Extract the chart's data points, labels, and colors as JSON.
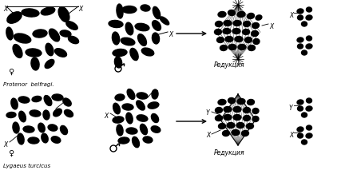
{
  "bg_color": "#ffffff",
  "female_symbol": "♀",
  "male_symbol": "♂",
  "label_top": "Protenor  belfragi.",
  "label_bottom": "Lygaeus turcicus",
  "redukciya": "Редукция",
  "female_top_chroms": [
    [
      18,
      22,
      20,
      12,
      30
    ],
    [
      38,
      16,
      22,
      10,
      -5
    ],
    [
      60,
      14,
      18,
      9,
      15
    ],
    [
      80,
      18,
      12,
      20,
      25
    ],
    [
      90,
      32,
      8,
      16,
      60
    ],
    [
      12,
      42,
      8,
      16,
      10
    ],
    [
      28,
      48,
      22,
      11,
      -15
    ],
    [
      50,
      42,
      18,
      10,
      5
    ],
    [
      68,
      44,
      10,
      18,
      35
    ],
    [
      82,
      42,
      14,
      8,
      -10
    ],
    [
      92,
      50,
      8,
      14,
      65
    ],
    [
      22,
      64,
      10,
      18,
      25
    ],
    [
      42,
      66,
      20,
      10,
      -5
    ],
    [
      62,
      62,
      9,
      16,
      18
    ],
    [
      76,
      66,
      16,
      9,
      -25
    ],
    [
      44,
      80,
      10,
      16,
      8
    ],
    [
      62,
      80,
      14,
      8,
      42
    ]
  ],
  "male_top_chroms": [
    [
      150,
      14,
      8,
      18,
      5
    ],
    [
      162,
      12,
      18,
      9,
      0
    ],
    [
      182,
      10,
      12,
      8,
      -8
    ],
    [
      196,
      16,
      8,
      16,
      20
    ],
    [
      206,
      26,
      6,
      14,
      50
    ],
    [
      145,
      30,
      18,
      9,
      -5
    ],
    [
      162,
      36,
      9,
      16,
      15
    ],
    [
      178,
      34,
      18,
      9,
      -10
    ],
    [
      196,
      32,
      9,
      14,
      35
    ],
    [
      145,
      48,
      9,
      16,
      8
    ],
    [
      160,
      52,
      18,
      9,
      -12
    ],
    [
      178,
      50,
      9,
      16,
      28
    ],
    [
      195,
      48,
      9,
      14,
      8
    ],
    [
      150,
      66,
      18,
      9,
      5
    ],
    [
      168,
      68,
      9,
      16,
      22
    ],
    [
      185,
      65,
      16,
      9,
      -18
    ],
    [
      148,
      78,
      9,
      14,
      10
    ]
  ],
  "spindle_top_chroms": [
    [
      278,
      18,
      10,
      7,
      5
    ],
    [
      290,
      16,
      9,
      7,
      -5
    ],
    [
      302,
      18,
      10,
      7,
      8
    ],
    [
      314,
      20,
      9,
      7,
      12
    ],
    [
      324,
      22,
      8,
      6,
      20
    ],
    [
      274,
      30,
      9,
      7,
      5
    ],
    [
      285,
      29,
      10,
      7,
      0
    ],
    [
      297,
      29,
      10,
      7,
      3
    ],
    [
      309,
      30,
      9,
      7,
      5
    ],
    [
      320,
      32,
      9,
      7,
      10
    ],
    [
      273,
      40,
      9,
      7,
      3
    ],
    [
      284,
      39,
      10,
      7,
      0
    ],
    [
      296,
      39,
      10,
      7,
      0
    ],
    [
      308,
      40,
      9,
      7,
      3
    ],
    [
      319,
      42,
      9,
      7,
      8
    ],
    [
      276,
      50,
      9,
      7,
      5
    ],
    [
      287,
      49,
      10,
      7,
      0
    ],
    [
      299,
      49,
      10,
      7,
      0
    ],
    [
      311,
      50,
      9,
      7,
      5
    ],
    [
      321,
      52,
      8,
      7,
      8
    ],
    [
      280,
      60,
      9,
      7,
      5
    ],
    [
      291,
      59,
      10,
      7,
      0
    ],
    [
      303,
      59,
      10,
      7,
      0
    ],
    [
      315,
      60,
      9,
      7,
      5
    ]
  ],
  "spindle_bot_chroms": [
    [
      278,
      128,
      10,
      7,
      5
    ],
    [
      290,
      126,
      9,
      7,
      -5
    ],
    [
      302,
      127,
      10,
      7,
      3
    ],
    [
      314,
      128,
      9,
      7,
      8
    ],
    [
      274,
      138,
      9,
      7,
      5
    ],
    [
      285,
      137,
      10,
      7,
      0
    ],
    [
      297,
      137,
      10,
      7,
      0
    ],
    [
      309,
      138,
      9,
      7,
      5
    ],
    [
      320,
      139,
      8,
      7,
      8
    ],
    [
      274,
      148,
      9,
      7,
      5
    ],
    [
      285,
      147,
      10,
      7,
      0
    ],
    [
      297,
      147,
      10,
      7,
      0
    ],
    [
      309,
      148,
      9,
      7,
      5
    ],
    [
      320,
      149,
      8,
      7,
      8
    ],
    [
      278,
      158,
      9,
      7,
      5
    ],
    [
      289,
      157,
      10,
      7,
      0
    ],
    [
      301,
      157,
      10,
      7,
      0
    ],
    [
      313,
      158,
      9,
      7,
      5
    ],
    [
      283,
      167,
      9,
      7,
      5
    ],
    [
      295,
      166,
      10,
      7,
      0
    ],
    [
      307,
      167,
      9,
      7,
      5
    ]
  ],
  "female_bot_chroms": [
    [
      18,
      130,
      8,
      14,
      12
    ],
    [
      30,
      125,
      14,
      8,
      -8
    ],
    [
      46,
      124,
      12,
      7,
      10
    ],
    [
      60,
      126,
      8,
      14,
      28
    ],
    [
      72,
      122,
      14,
      8,
      -5
    ],
    [
      84,
      128,
      8,
      12,
      48
    ],
    [
      14,
      144,
      12,
      7,
      5
    ],
    [
      28,
      146,
      8,
      14,
      18
    ],
    [
      44,
      142,
      14,
      8,
      -8
    ],
    [
      58,
      144,
      8,
      12,
      8
    ],
    [
      72,
      141,
      12,
      8,
      38
    ],
    [
      86,
      142,
      8,
      12,
      58
    ],
    [
      20,
      160,
      8,
      14,
      8
    ],
    [
      36,
      162,
      14,
      8,
      -5
    ],
    [
      52,
      160,
      8,
      12,
      18
    ],
    [
      66,
      160,
      12,
      8,
      -12
    ],
    [
      80,
      163,
      8,
      12,
      28
    ],
    [
      26,
      174,
      8,
      14,
      10
    ],
    [
      42,
      176,
      14,
      8,
      -3
    ],
    [
      56,
      173,
      8,
      12,
      16
    ],
    [
      70,
      175,
      12,
      8,
      -18
    ]
  ],
  "male_bot_chroms": [
    [
      150,
      122,
      12,
      8,
      8
    ],
    [
      164,
      118,
      8,
      14,
      28
    ],
    [
      178,
      120,
      14,
      8,
      -8
    ],
    [
      194,
      118,
      8,
      12,
      -5
    ],
    [
      146,
      136,
      8,
      14,
      18
    ],
    [
      160,
      134,
      14,
      8,
      -5
    ],
    [
      176,
      132,
      8,
      14,
      38
    ],
    [
      192,
      132,
      14,
      8,
      12
    ],
    [
      148,
      150,
      14,
      8,
      8
    ],
    [
      162,
      148,
      8,
      14,
      12
    ],
    [
      178,
      148,
      14,
      8,
      -12
    ],
    [
      194,
      148,
      8,
      12,
      30
    ],
    [
      150,
      163,
      8,
      14,
      8
    ],
    [
      165,
      164,
      14,
      8,
      -5
    ],
    [
      180,
      162,
      8,
      14,
      22
    ],
    [
      195,
      162,
      12,
      8,
      -18
    ],
    [
      155,
      176,
      14,
      8,
      5
    ],
    [
      170,
      178,
      8,
      14,
      20
    ],
    [
      185,
      175,
      12,
      8,
      -10
    ]
  ],
  "gamete_top_X": [
    [
      376,
      14,
      8,
      6,
      8
    ],
    [
      387,
      12,
      7,
      6,
      -5
    ],
    [
      376,
      22,
      7,
      6,
      5
    ],
    [
      387,
      22,
      8,
      6,
      10
    ],
    [
      381,
      30,
      7,
      6,
      0
    ]
  ],
  "gamete_top_noX": [
    [
      376,
      50,
      8,
      6,
      8
    ],
    [
      387,
      48,
      7,
      6,
      -5
    ],
    [
      376,
      58,
      7,
      6,
      5
    ],
    [
      387,
      58,
      8,
      6,
      10
    ],
    [
      381,
      66,
      7,
      6,
      0
    ]
  ],
  "gamete_bot_Y": [
    [
      376,
      128,
      8,
      6,
      8
    ],
    [
      387,
      126,
      7,
      6,
      -5
    ],
    [
      376,
      136,
      7,
      6,
      5
    ],
    [
      387,
      136,
      8,
      6,
      10
    ],
    [
      381,
      144,
      7,
      6,
      0
    ]
  ],
  "gamete_bot_X": [
    [
      376,
      162,
      8,
      6,
      8
    ],
    [
      387,
      160,
      7,
      6,
      -5
    ],
    [
      376,
      170,
      7,
      6,
      5
    ],
    [
      387,
      170,
      8,
      6,
      10
    ],
    [
      381,
      178,
      7,
      6,
      0
    ]
  ]
}
